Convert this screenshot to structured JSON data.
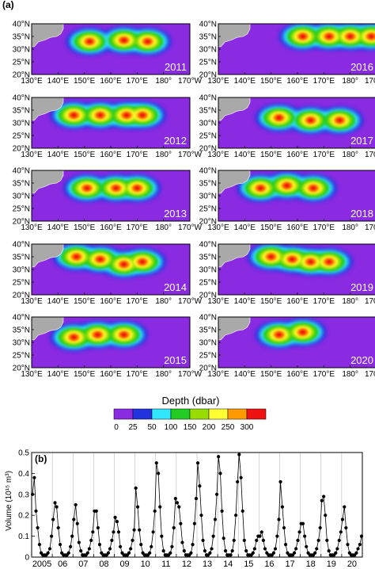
{
  "panel_a": {
    "label": "(a)",
    "lat_ticks": [
      "40°N",
      "35°N",
      "30°N",
      "25°N",
      "20°N"
    ],
    "lon_ticks": [
      "130°E",
      "140°E",
      "150°E",
      "160°E",
      "170°E",
      "180°",
      "170°W"
    ],
    "maps": [
      {
        "year": "2011",
        "blobs": [
          [
            152,
            33
          ],
          [
            165,
            33.5
          ],
          [
            174,
            33
          ]
        ]
      },
      {
        "year": "2012",
        "blobs": [
          [
            146,
            33
          ],
          [
            156,
            33
          ],
          [
            166,
            33
          ],
          [
            172,
            33
          ]
        ]
      },
      {
        "year": "2013",
        "blobs": [
          [
            151,
            33
          ],
          [
            162,
            33
          ],
          [
            170,
            33
          ]
        ]
      },
      {
        "year": "2014",
        "blobs": [
          [
            147,
            35
          ],
          [
            156,
            34
          ],
          [
            165,
            32
          ],
          [
            172,
            33
          ]
        ]
      },
      {
        "year": "2015",
        "blobs": [
          [
            146,
            32
          ],
          [
            155,
            33
          ],
          [
            165,
            33
          ]
        ]
      },
      {
        "year": "2016",
        "blobs": [
          [
            162,
            35
          ],
          [
            172,
            35
          ],
          [
            180,
            35
          ],
          [
            188,
            35
          ]
        ]
      },
      {
        "year": "2017",
        "blobs": [
          [
            153,
            32
          ],
          [
            165,
            31
          ],
          [
            176,
            31
          ]
        ]
      },
      {
        "year": "2018",
        "blobs": [
          [
            146,
            33
          ],
          [
            156,
            34
          ],
          [
            166,
            33
          ]
        ]
      },
      {
        "year": "2019",
        "blobs": [
          [
            150,
            35
          ],
          [
            158,
            34
          ],
          [
            165,
            33
          ],
          [
            172,
            33
          ]
        ]
      },
      {
        "year": "2020",
        "blobs": [
          [
            153,
            33
          ],
          [
            162,
            34
          ]
        ]
      }
    ]
  },
  "colorbar": {
    "title": "Depth (dbar)",
    "ticks": [
      "0",
      "25",
      "50",
      "100",
      "150",
      "200",
      "250",
      "300"
    ],
    "colors": [
      "#8a2be2",
      "#2233dd",
      "#33e6ff",
      "#22cc22",
      "#99dd00",
      "#ffff33",
      "#ff9900",
      "#ee1111"
    ]
  },
  "colors": {
    "ocean": "#8a2be2",
    "land": "#a9a9a9",
    "no_data": "#999999"
  },
  "panel_b": {
    "label": "(b)",
    "ylabel": "Volume (10¹⁵ m³)",
    "year_labels": [
      "2005",
      "06",
      "07",
      "08",
      "09",
      "10",
      "11",
      "12",
      "13",
      "14",
      "15",
      "16",
      "17",
      "18",
      "19",
      "20"
    ]
  },
  "chart_data": {
    "type": "line",
    "title": "",
    "xlabel": "",
    "ylabel": "Volume (10¹⁵ m³)",
    "ylim": [
      0,
      0.5
    ],
    "yticks": [
      0,
      0.1,
      0.2,
      0.3,
      0.4,
      0.5
    ],
    "xlim": [
      2005,
      2021
    ],
    "grid": "vertical lines at year boundaries",
    "series": [
      {
        "x": [
          2005.04,
          2005.13,
          2005.21,
          2005.29,
          2005.38,
          2005.46,
          2005.54,
          2005.63,
          2005.71,
          2005.79,
          2005.88,
          2005.96,
          2006.04,
          2006.13,
          2006.21,
          2006.29,
          2006.38,
          2006.46,
          2006.54,
          2006.63,
          2006.71,
          2006.79,
          2006.88,
          2006.96,
          2007.04,
          2007.13,
          2007.21,
          2007.29,
          2007.38,
          2007.46,
          2007.54,
          2007.63,
          2007.71,
          2007.79,
          2007.88,
          2007.96,
          2008.04,
          2008.13,
          2008.21,
          2008.29,
          2008.38,
          2008.46,
          2008.54,
          2008.63,
          2008.71,
          2008.79,
          2008.88,
          2008.96,
          2009.04,
          2009.13,
          2009.21,
          2009.29,
          2009.38,
          2009.46,
          2009.54,
          2009.63,
          2009.71,
          2009.79,
          2009.88,
          2009.96,
          2010.04,
          2010.13,
          2010.21,
          2010.29,
          2010.38,
          2010.46,
          2010.54,
          2010.63,
          2010.71,
          2010.79,
          2010.88,
          2010.96,
          2011.04,
          2011.13,
          2011.21,
          2011.29,
          2011.38,
          2011.46,
          2011.54,
          2011.63,
          2011.71,
          2011.79,
          2011.88,
          2011.96,
          2012.04,
          2012.13,
          2012.21,
          2012.29,
          2012.38,
          2012.46,
          2012.54,
          2012.63,
          2012.71,
          2012.79,
          2012.88,
          2012.96,
          2013.04,
          2013.13,
          2013.21,
          2013.29,
          2013.38,
          2013.46,
          2013.54,
          2013.63,
          2013.71,
          2013.79,
          2013.88,
          2013.96,
          2014.04,
          2014.13,
          2014.21,
          2014.29,
          2014.38,
          2014.46,
          2014.54,
          2014.63,
          2014.71,
          2014.79,
          2014.88,
          2014.96,
          2015.04,
          2015.13,
          2015.21,
          2015.29,
          2015.38,
          2015.46,
          2015.54,
          2015.63,
          2015.71,
          2015.79,
          2015.88,
          2015.96,
          2016.04,
          2016.13,
          2016.21,
          2016.29,
          2016.38,
          2016.46,
          2016.54,
          2016.63,
          2016.71,
          2016.79,
          2016.88,
          2016.96,
          2017.04,
          2017.13,
          2017.21,
          2017.29,
          2017.38,
          2017.46,
          2017.54,
          2017.63,
          2017.71,
          2017.79,
          2017.88,
          2017.96,
          2018.04,
          2018.13,
          2018.21,
          2018.29,
          2018.38,
          2018.46,
          2018.54,
          2018.63,
          2018.71,
          2018.79,
          2018.88,
          2018.96,
          2019.04,
          2019.13,
          2019.21,
          2019.29,
          2019.38,
          2019.46,
          2019.54,
          2019.63,
          2019.71,
          2019.79,
          2019.88,
          2019.96,
          2020.04,
          2020.13,
          2020.21,
          2020.29,
          2020.38,
          2020.46,
          2020.54,
          2020.63,
          2020.71,
          2020.79,
          2020.88,
          2020.96
        ],
        "y": [
          0.3,
          0.38,
          0.22,
          0.14,
          0.06,
          0.02,
          0.01,
          0.01,
          0.01,
          0.02,
          0.04,
          0.1,
          0.18,
          0.26,
          0.24,
          0.14,
          0.06,
          0.02,
          0.01,
          0.01,
          0.01,
          0.02,
          0.05,
          0.1,
          0.18,
          0.25,
          0.16,
          0.07,
          0.03,
          0.01,
          0.01,
          0.01,
          0.02,
          0.04,
          0.08,
          0.12,
          0.22,
          0.22,
          0.14,
          0.06,
          0.02,
          0.01,
          0.01,
          0.01,
          0.02,
          0.04,
          0.08,
          0.12,
          0.19,
          0.17,
          0.12,
          0.05,
          0.02,
          0.01,
          0.01,
          0.01,
          0.02,
          0.04,
          0.08,
          0.13,
          0.33,
          0.24,
          0.13,
          0.06,
          0.02,
          0.01,
          0.01,
          0.01,
          0.02,
          0.05,
          0.12,
          0.22,
          0.45,
          0.4,
          0.24,
          0.1,
          0.03,
          0.01,
          0.01,
          0.01,
          0.02,
          0.05,
          0.14,
          0.28,
          0.26,
          0.24,
          0.16,
          0.07,
          0.03,
          0.01,
          0.01,
          0.01,
          0.02,
          0.06,
          0.16,
          0.28,
          0.45,
          0.34,
          0.2,
          0.08,
          0.03,
          0.01,
          0.01,
          0.02,
          0.04,
          0.1,
          0.18,
          0.3,
          0.48,
          0.4,
          0.22,
          0.09,
          0.03,
          0.01,
          0.01,
          0.01,
          0.03,
          0.08,
          0.2,
          0.36,
          0.49,
          0.38,
          0.22,
          0.08,
          0.03,
          0.01,
          0.01,
          0.01,
          0.02,
          0.04,
          0.08,
          0.1,
          0.1,
          0.12,
          0.08,
          0.04,
          0.02,
          0.01,
          0.01,
          0.01,
          0.02,
          0.04,
          0.1,
          0.18,
          0.36,
          0.24,
          0.14,
          0.06,
          0.02,
          0.01,
          0.01,
          0.01,
          0.02,
          0.04,
          0.08,
          0.12,
          0.16,
          0.16,
          0.1,
          0.05,
          0.02,
          0.01,
          0.01,
          0.01,
          0.02,
          0.04,
          0.08,
          0.14,
          0.27,
          0.29,
          0.2,
          0.08,
          0.03,
          0.01,
          0.01,
          0.01,
          0.02,
          0.04,
          0.08,
          0.12,
          0.18,
          0.24,
          0.14,
          0.06,
          0.02,
          0.01,
          0.01,
          0.01,
          0.02,
          0.04,
          0.06,
          0.1
        ]
      }
    ]
  }
}
